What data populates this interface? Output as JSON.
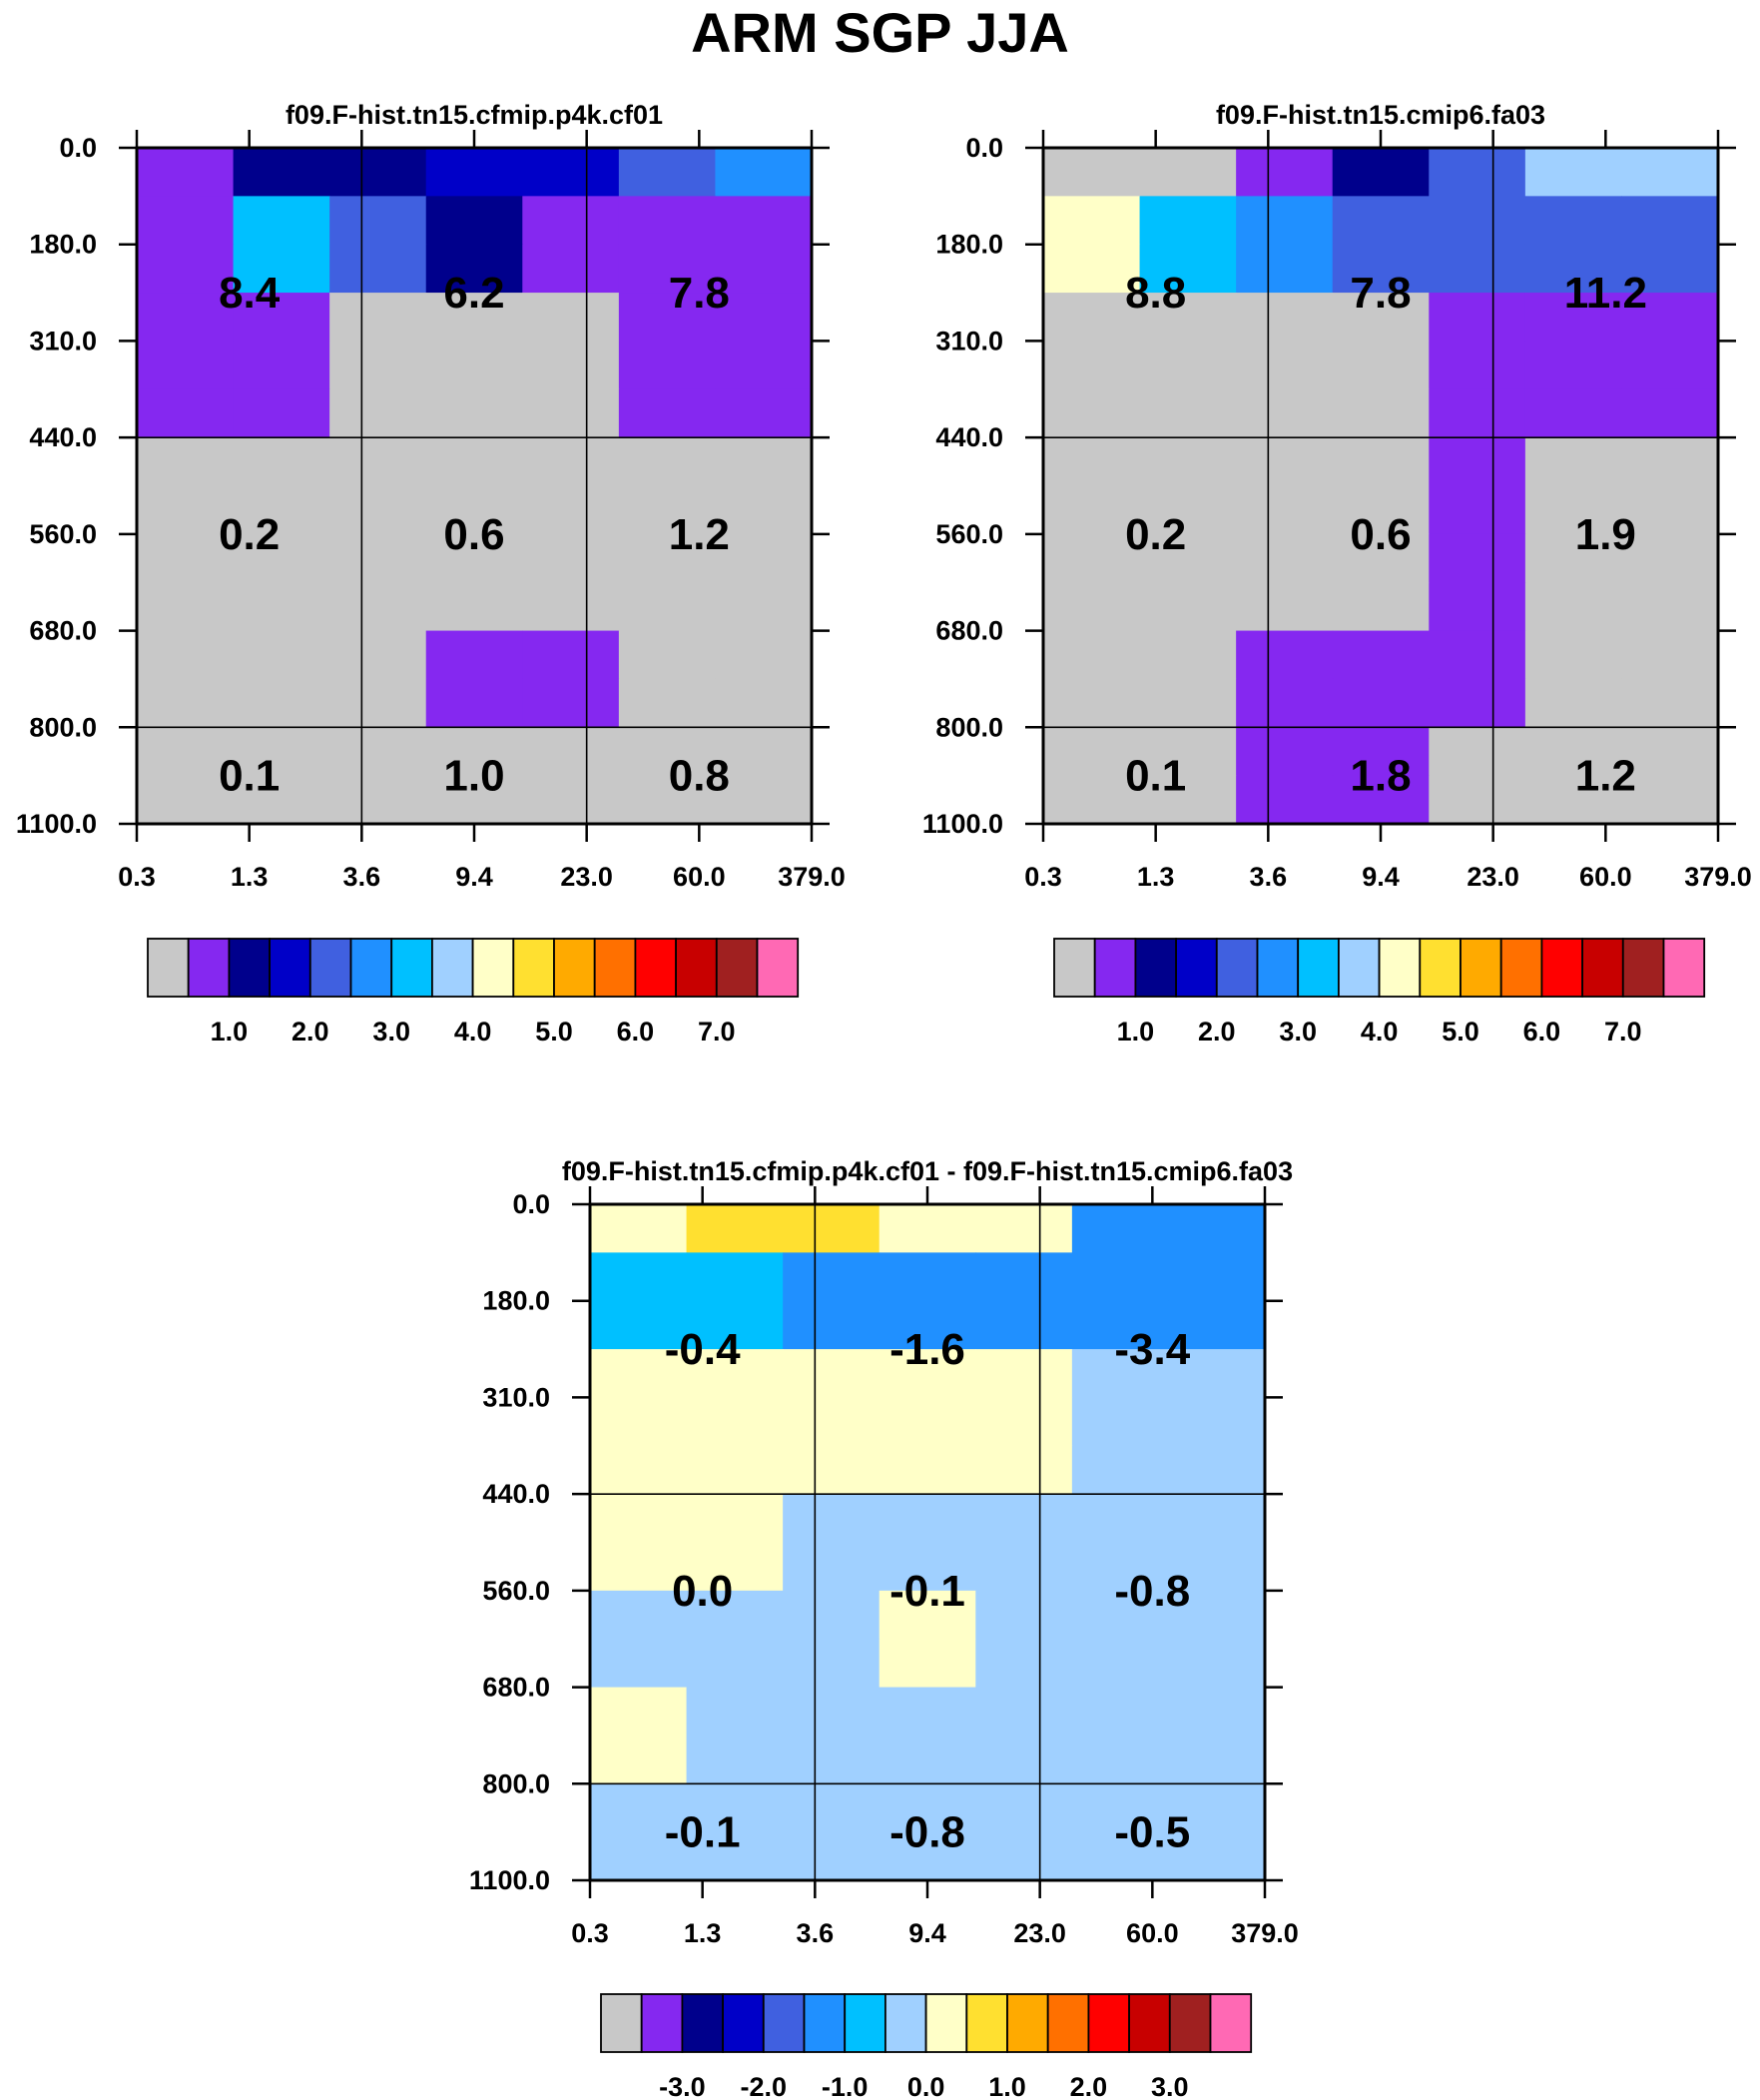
{
  "title": "ARM SGP JJA",
  "palette": [
    "#c8c8c8",
    "#8528f0",
    "#00008c",
    "#0000c8",
    "#4060e0",
    "#2090ff",
    "#00c0ff",
    "#a0d0ff",
    "#ffffc8",
    "#ffe030",
    "#ffaa00",
    "#ff7000",
    "#ff0000",
    "#c80000",
    "#a02020",
    "#ff69b4"
  ],
  "chart_data": [
    {
      "type": "heatmap",
      "title": "f09.F-hist.tn15.cfmip.p4k.cf01",
      "x_ticks": [
        "0.3",
        "1.3",
        "3.6",
        "9.4",
        "23.0",
        "60.0",
        "379.0"
      ],
      "y_ticks": [
        "0.0",
        "180.0",
        "310.0",
        "440.0",
        "560.0",
        "680.0",
        "800.0",
        "1100.0"
      ],
      "cell_color_index": [
        [
          1,
          2,
          2,
          3,
          3,
          4,
          5
        ],
        [
          1,
          6,
          4,
          2,
          1,
          1,
          1
        ],
        [
          1,
          6,
          4,
          2,
          1,
          1,
          1
        ],
        [
          1,
          1,
          0,
          0,
          0,
          1,
          1
        ],
        [
          1,
          1,
          0,
          0,
          0,
          1,
          1
        ],
        [
          1,
          1,
          0,
          0,
          0,
          1,
          1
        ],
        [
          0,
          0,
          0,
          0,
          0,
          0,
          0
        ],
        [
          0,
          0,
          0,
          0,
          0,
          0,
          0
        ],
        [
          0,
          0,
          0,
          0,
          0,
          0,
          0
        ],
        [
          0,
          0,
          0,
          0,
          0,
          0,
          0
        ],
        [
          0,
          0,
          0,
          1,
          1,
          0,
          0
        ],
        [
          0,
          0,
          0,
          1,
          1,
          0,
          0
        ],
        [
          0,
          0,
          0,
          0,
          0,
          0,
          0
        ],
        [
          0,
          0,
          0,
          0,
          0,
          0,
          0
        ]
      ],
      "block_values": [
        [
          "8.4",
          "6.2",
          "7.8"
        ],
        [
          "0.2",
          "0.6",
          "1.2"
        ],
        [
          "0.1",
          "1.0",
          "0.8"
        ]
      ],
      "colorbar_labels": [
        "1.0",
        "2.0",
        "3.0",
        "4.0",
        "5.0",
        "6.0",
        "7.0"
      ]
    },
    {
      "type": "heatmap",
      "title": "f09.F-hist.tn15.cmip6.fa03",
      "x_ticks": [
        "0.3",
        "1.3",
        "3.6",
        "9.4",
        "23.0",
        "60.0",
        "379.0"
      ],
      "y_ticks": [
        "0.0",
        "180.0",
        "310.0",
        "440.0",
        "560.0",
        "680.0",
        "800.0",
        "1100.0"
      ],
      "cell_color_index": [
        [
          0,
          0,
          1,
          2,
          4,
          7,
          7
        ],
        [
          8,
          6,
          5,
          4,
          4,
          4,
          4
        ],
        [
          8,
          6,
          5,
          4,
          4,
          4,
          4
        ],
        [
          0,
          0,
          0,
          0,
          1,
          1,
          1
        ],
        [
          0,
          0,
          0,
          0,
          1,
          1,
          1
        ],
        [
          0,
          0,
          0,
          0,
          1,
          1,
          1
        ],
        [
          0,
          0,
          0,
          0,
          1,
          0,
          0
        ],
        [
          0,
          0,
          0,
          0,
          1,
          0,
          0
        ],
        [
          0,
          0,
          0,
          0,
          1,
          0,
          0
        ],
        [
          0,
          0,
          0,
          0,
          1,
          0,
          0
        ],
        [
          0,
          0,
          1,
          1,
          1,
          0,
          0
        ],
        [
          0,
          0,
          1,
          1,
          1,
          0,
          0
        ],
        [
          0,
          0,
          1,
          1,
          0,
          0,
          0
        ],
        [
          0,
          0,
          1,
          1,
          0,
          0,
          0
        ]
      ],
      "block_values": [
        [
          "8.8",
          "7.8",
          "11.2"
        ],
        [
          "0.2",
          "0.6",
          "1.9"
        ],
        [
          "0.1",
          "1.8",
          "1.2"
        ]
      ],
      "colorbar_labels": [
        "1.0",
        "2.0",
        "3.0",
        "4.0",
        "5.0",
        "6.0",
        "7.0"
      ]
    },
    {
      "type": "heatmap",
      "title": "f09.F-hist.tn15.cfmip.p4k.cf01 - f09.F-hist.tn15.cmip6.fa03",
      "x_ticks": [
        "0.3",
        "1.3",
        "3.6",
        "9.4",
        "23.0",
        "60.0",
        "379.0"
      ],
      "y_ticks": [
        "0.0",
        "180.0",
        "310.0",
        "440.0",
        "560.0",
        "680.0",
        "800.0",
        "1100.0"
      ],
      "cell_color_index": [
        [
          8,
          9,
          9,
          8,
          8,
          5,
          5
        ],
        [
          6,
          6,
          5,
          5,
          5,
          5,
          5
        ],
        [
          6,
          6,
          5,
          5,
          5,
          5,
          5
        ],
        [
          8,
          8,
          8,
          8,
          8,
          7,
          7
        ],
        [
          8,
          8,
          8,
          8,
          8,
          7,
          7
        ],
        [
          8,
          8,
          8,
          8,
          8,
          7,
          7
        ],
        [
          8,
          8,
          7,
          7,
          7,
          7,
          7
        ],
        [
          8,
          8,
          7,
          7,
          7,
          7,
          7
        ],
        [
          7,
          7,
          7,
          8,
          7,
          7,
          7
        ],
        [
          7,
          7,
          7,
          8,
          7,
          7,
          7
        ],
        [
          8,
          7,
          7,
          7,
          7,
          7,
          7
        ],
        [
          8,
          7,
          7,
          7,
          7,
          7,
          7
        ],
        [
          7,
          7,
          7,
          7,
          7,
          7,
          7
        ],
        [
          7,
          7,
          7,
          7,
          7,
          7,
          7
        ]
      ],
      "block_values": [
        [
          "-0.4",
          "-1.6",
          "-3.4"
        ],
        [
          "0.0",
          "-0.1",
          "-0.8"
        ],
        [
          "-0.1",
          "-0.8",
          "-0.5"
        ]
      ],
      "colorbar_labels": [
        "-3.0",
        "-2.0",
        "-1.0",
        "0.0",
        "1.0",
        "2.0",
        "3.0"
      ]
    }
  ]
}
